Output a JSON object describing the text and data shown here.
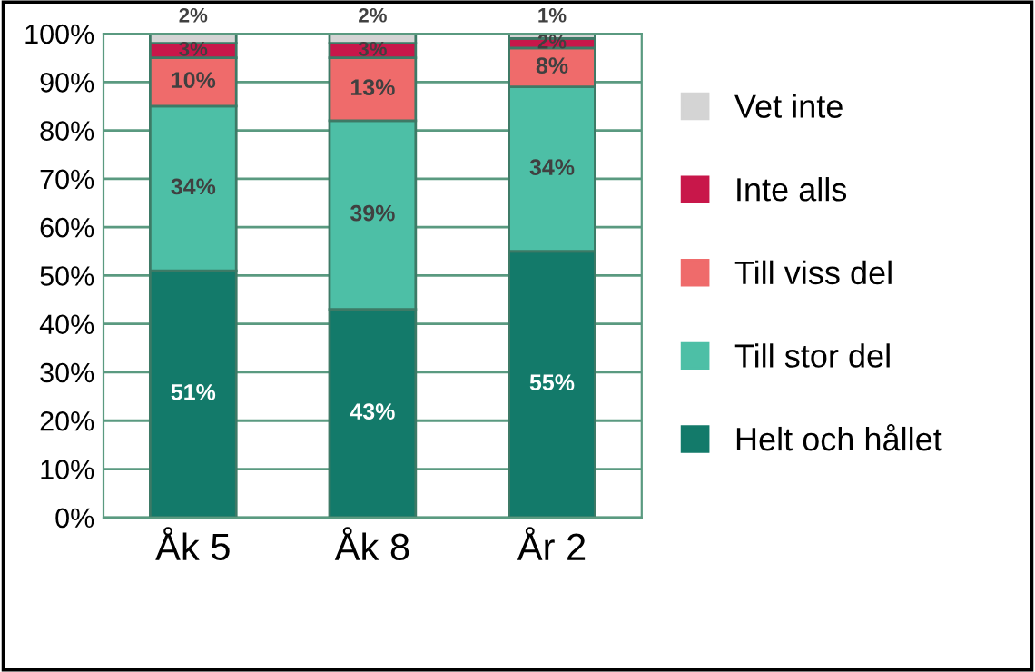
{
  "chart_data": {
    "type": "bar",
    "stacked": true,
    "categories": [
      "Åk 5",
      "Åk 8",
      "År 2"
    ],
    "series": [
      {
        "name": "Helt och hållet",
        "color": "#137a6a",
        "values": [
          51,
          43,
          55
        ]
      },
      {
        "name": "Till stor del",
        "color": "#4dbfa6",
        "values": [
          34,
          39,
          34
        ]
      },
      {
        "name": "Till viss del",
        "color": "#ef6b6b",
        "values": [
          10,
          13,
          8
        ]
      },
      {
        "name": "Inte alls",
        "color": "#c8174a",
        "values": [
          3,
          3,
          2
        ]
      },
      {
        "name": "Vet inte",
        "color": "#d4d4d4",
        "values": [
          2,
          2,
          1
        ]
      }
    ],
    "ylim": [
      0,
      100
    ],
    "yticks": [
      {
        "value": 0,
        "label": "0%"
      },
      {
        "value": 10,
        "label": "10%"
      },
      {
        "value": 20,
        "label": "20%"
      },
      {
        "value": 30,
        "label": "30%"
      },
      {
        "value": 40,
        "label": "40%"
      },
      {
        "value": 50,
        "label": "50%"
      },
      {
        "value": 60,
        "label": "60%"
      },
      {
        "value": 70,
        "label": "70%"
      },
      {
        "value": 80,
        "label": "80%"
      },
      {
        "value": 90,
        "label": "90%"
      },
      {
        "value": 100,
        "label": "100%"
      }
    ],
    "grid": "y",
    "legend": "right",
    "value_labels": [
      [
        "51%",
        "43%",
        "55%"
      ],
      [
        "34%",
        "39%",
        "34%"
      ],
      [
        "10%",
        "13%",
        "8%"
      ],
      [
        "3%",
        "3%",
        "2%"
      ],
      [
        "2%",
        "2%",
        "1%"
      ]
    ]
  }
}
